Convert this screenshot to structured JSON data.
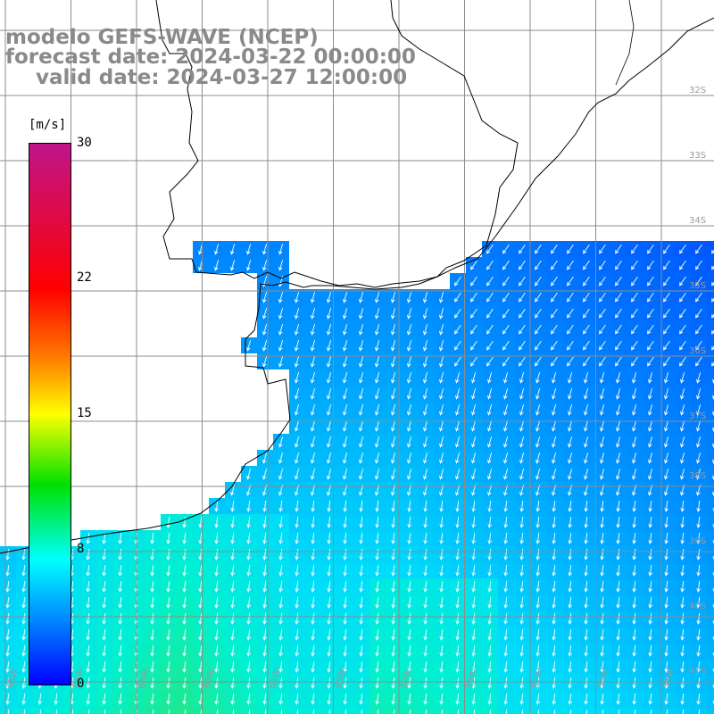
{
  "title": {
    "line1": "modelo GEFS-WAVE (NCEP)",
    "line2": "forecast date: 2024-03-22 00:00:00",
    "line3": "valid date: 2024-03-27 12:00:00"
  },
  "colorbar": {
    "unit": "[m/s]",
    "ticks": [
      "30",
      "22",
      "15",
      "8",
      "0"
    ],
    "range": [
      0,
      30
    ]
  },
  "map": {
    "field": "wind speed",
    "arrow_direction": "towards south-southwest",
    "colors": {
      "land": "#ffffff",
      "coast": "#000000",
      "grid": "#8c8c8c",
      "arrow": "#ffffff"
    },
    "lat_labels": [
      "32S",
      "33S",
      "34S",
      "35S",
      "36S",
      "37S",
      "38S",
      "39S",
      "40S",
      "41S"
    ],
    "lon_labels": [
      "65W",
      "64W",
      "63W",
      "62W",
      "61W",
      "60W",
      "59W",
      "58W",
      "57W",
      "56W",
      "55W"
    ]
  }
}
